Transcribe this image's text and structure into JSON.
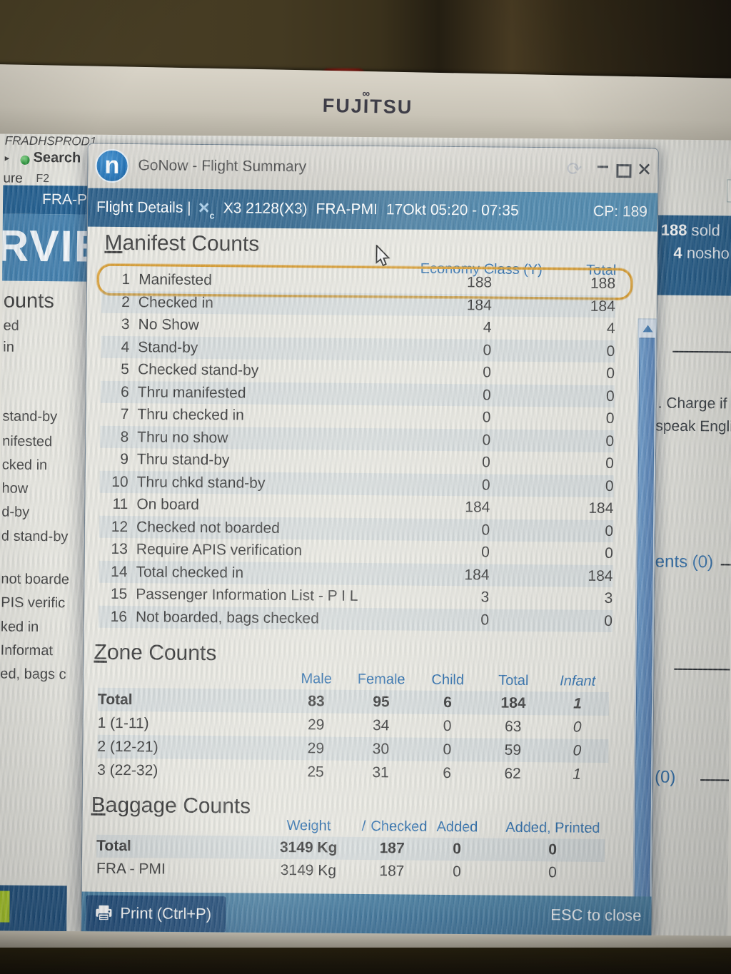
{
  "monitor": {
    "brand": "FUJITSU",
    "infinity": "∞"
  },
  "background_left": {
    "host": "FRADHSPROD1",
    "arrow": "▸",
    "search": "Search",
    "search_key": "F2",
    "partial_ure": "ure",
    "tab": "FRA-P",
    "watermark": "RVIE",
    "items": [
      "ounts",
      "ed",
      "in",
      "stand-by",
      "nifested",
      "cked in",
      "how",
      "d-by",
      "d stand-by",
      "not boarde",
      "PIS verific",
      "ked in",
      "Informat",
      "ed, bags c"
    ]
  },
  "background_right": {
    "sold_count": "188",
    "sold_label": "sold",
    "nosho_count": "4",
    "nosho_label": "nosho",
    "charge_line1": ". Charge if r",
    "charge_line2": "speak Englis",
    "comments": "ents (0)",
    "zero": "(0)"
  },
  "dialog": {
    "title": "GoNow - Flight Summary",
    "app_icon_letter": "n",
    "icons": {
      "refresh": "⟳",
      "minimize": "–",
      "close": "×",
      "logo_x": "×",
      "logo_sub": "c"
    },
    "header": {
      "label": "Flight Details |",
      "flight": "X3 2128(X3)",
      "route": "FRA-PMI",
      "datetime": "17Okt 05:20 - 07:35",
      "cp": "CP: 189"
    },
    "manifest": {
      "heading": "Manifest Counts",
      "col_economy": "Economy Class (Y)",
      "col_total": "Total",
      "rows": [
        {
          "num": "1",
          "label": "Manifested",
          "econ": "188",
          "total": "188",
          "highlighted": true
        },
        {
          "num": "2",
          "label": "Checked in",
          "econ": "184",
          "total": "184"
        },
        {
          "num": "3",
          "label": "No Show",
          "econ": "4",
          "total": "4"
        },
        {
          "num": "4",
          "label": "Stand-by",
          "econ": "0",
          "total": "0"
        },
        {
          "num": "5",
          "label": "Checked stand-by",
          "econ": "0",
          "total": "0"
        },
        {
          "num": "6",
          "label": "Thru manifested",
          "econ": "0",
          "total": "0"
        },
        {
          "num": "7",
          "label": "Thru checked in",
          "econ": "0",
          "total": "0"
        },
        {
          "num": "8",
          "label": "Thru no show",
          "econ": "0",
          "total": "0"
        },
        {
          "num": "9",
          "label": "Thru stand-by",
          "econ": "0",
          "total": "0"
        },
        {
          "num": "10",
          "label": "Thru chkd stand-by",
          "econ": "0",
          "total": "0"
        },
        {
          "num": "11",
          "label": "On board",
          "econ": "184",
          "total": "184"
        },
        {
          "num": "12",
          "label": "Checked not boarded",
          "econ": "0",
          "total": "0"
        },
        {
          "num": "13",
          "label": "Require APIS verification",
          "econ": "0",
          "total": "0"
        },
        {
          "num": "14",
          "label": "Total checked in",
          "econ": "184",
          "total": "184"
        },
        {
          "num": "15",
          "label": "Passenger Information List - P I L",
          "econ": "3",
          "total": "3"
        },
        {
          "num": "16",
          "label": "Not boarded, bags checked",
          "econ": "0",
          "total": "0"
        }
      ]
    },
    "zones": {
      "heading": "Zone Counts",
      "columns": [
        "Male",
        "Female",
        "Child",
        "Total",
        "Infant"
      ],
      "rows": [
        {
          "label": "Total",
          "values": [
            "83",
            "95",
            "6",
            "184",
            "1"
          ],
          "bold": true
        },
        {
          "label": "1 (1-11)",
          "values": [
            "29",
            "34",
            "0",
            "63",
            "0"
          ]
        },
        {
          "label": "2 (12-21)",
          "values": [
            "29",
            "30",
            "0",
            "59",
            "0"
          ]
        },
        {
          "label": "3 (22-32)",
          "values": [
            "25",
            "31",
            "6",
            "62",
            "1"
          ]
        }
      ]
    },
    "baggage": {
      "heading": "Baggage Counts",
      "col_weight": "Weight",
      "col_slash": "/",
      "col_checked": "Checked",
      "col_added": "Added",
      "col_added_printed": "Added, Printed",
      "rows": [
        {
          "label": "Total",
          "weight": "3149 Kg",
          "checked": "187",
          "added": "0",
          "added_printed": "0",
          "bold": true
        },
        {
          "label": "FRA - PMI",
          "weight": "3149 Kg",
          "checked": "187",
          "added": "0",
          "added_printed": "0"
        }
      ]
    },
    "footer": {
      "print": "Print (Ctrl+P)",
      "esc": "ESC to close"
    }
  },
  "colors": {
    "accent_blue": "#2e6fad",
    "highlight_orange": "#d79a2c",
    "header_navy": "#275b86",
    "footer_teal": "#3a7099",
    "print_navy": "#1d4a79",
    "lime_marker": "#a8c923",
    "sold_box_blue": "#205a89"
  }
}
